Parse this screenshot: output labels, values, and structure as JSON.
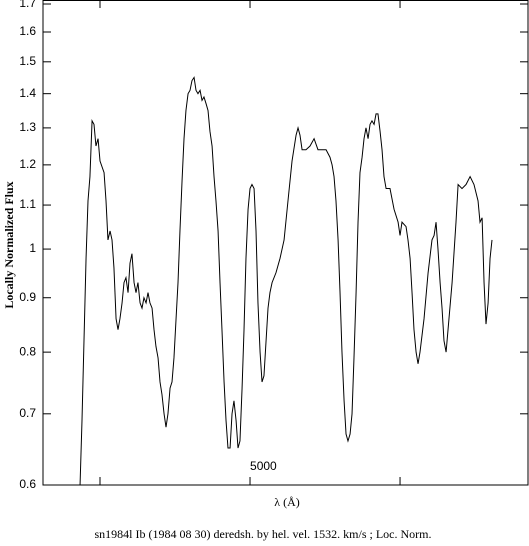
{
  "chart_data": {
    "type": "line",
    "title": "sn1984l Ib (1984 08 30) deredsh. by hel. vel.  1532. km/s ;  Loc. Norm.",
    "x_label": "λ (Å)",
    "y_label": "Locally Normalized Flux",
    "log_y": true,
    "color": "#000000",
    "xlim": [
      3620,
      6853
    ],
    "xticks": [
      {
        "value": 4000,
        "label": null
      },
      5000,
      {
        "value": 6000,
        "label": null
      }
    ],
    "ylim": [
      0.6,
      1.7
    ],
    "yticks": [
      0.6,
      0.7,
      0.8,
      0.9,
      1,
      1.1,
      1.2,
      1.3,
      1.4,
      1.5,
      1.6,
      1.7
    ],
    "x": [
      3867,
      3880,
      3907,
      3920,
      3933,
      3947,
      3960,
      3973,
      3987,
      4000,
      4027,
      4040,
      4053,
      4067,
      4080,
      4093,
      4107,
      4120,
      4133,
      4147,
      4160,
      4173,
      4187,
      4200,
      4213,
      4227,
      4240,
      4253,
      4267,
      4280,
      4293,
      4307,
      4320,
      4333,
      4347,
      4360,
      4373,
      4387,
      4400,
      4413,
      4427,
      4440,
      4453,
      4467,
      4480,
      4493,
      4507,
      4520,
      4533,
      4547,
      4560,
      4573,
      4587,
      4600,
      4613,
      4627,
      4640,
      4653,
      4667,
      4680,
      4693,
      4707,
      4720,
      4733,
      4747,
      4760,
      4773,
      4787,
      4800,
      4813,
      4827,
      4840,
      4853,
      4867,
      4880,
      4893,
      4907,
      4920,
      4933,
      4947,
      4960,
      4973,
      4987,
      5000,
      5013,
      5027,
      5040,
      5053,
      5067,
      5080,
      5093,
      5107,
      5120,
      5133,
      5147,
      5173,
      5200,
      5227,
      5253,
      5280,
      5307,
      5320,
      5333,
      5347,
      5373,
      5400,
      5427,
      5453,
      5480,
      5507,
      5533,
      5547,
      5560,
      5573,
      5587,
      5600,
      5613,
      5627,
      5640,
      5653,
      5667,
      5680,
      5693,
      5707,
      5720,
      5733,
      5747,
      5760,
      5773,
      5787,
      5800,
      5813,
      5827,
      5840,
      5853,
      5867,
      5880,
      5893,
      5907,
      5933,
      5960,
      5987,
      6000,
      6013,
      6040,
      6053,
      6067,
      6080,
      6093,
      6107,
      6120,
      6133,
      6160,
      6187,
      6213,
      6227,
      6240,
      6253,
      6267,
      6280,
      6293,
      6307,
      6320,
      6347,
      6373,
      6387,
      6413,
      6440,
      6467,
      6493,
      6520,
      6533,
      6547,
      6560,
      6573,
      6587,
      6600,
      6613
    ],
    "values": [
      0.6,
      0.69,
      0.98,
      1.11,
      1.17,
      1.32,
      1.31,
      1.25,
      1.27,
      1.21,
      1.18,
      1.11,
      1.02,
      1.04,
      1.02,
      0.96,
      0.86,
      0.84,
      0.86,
      0.89,
      0.93,
      0.94,
      0.91,
      0.97,
      0.99,
      0.93,
      0.91,
      0.93,
      0.89,
      0.88,
      0.9,
      0.89,
      0.91,
      0.89,
      0.88,
      0.84,
      0.81,
      0.79,
      0.75,
      0.73,
      0.7,
      0.68,
      0.7,
      0.74,
      0.75,
      0.79,
      0.86,
      0.93,
      1.04,
      1.16,
      1.27,
      1.35,
      1.4,
      1.41,
      1.44,
      1.45,
      1.41,
      1.4,
      1.41,
      1.38,
      1.39,
      1.37,
      1.35,
      1.29,
      1.25,
      1.17,
      1.11,
      1.04,
      0.93,
      0.84,
      0.75,
      0.69,
      0.65,
      0.65,
      0.7,
      0.72,
      0.69,
      0.65,
      0.66,
      0.74,
      0.84,
      0.98,
      1.09,
      1.14,
      1.15,
      1.14,
      1.04,
      0.89,
      0.8,
      0.75,
      0.76,
      0.82,
      0.88,
      0.91,
      0.93,
      0.95,
      0.98,
      1.02,
      1.11,
      1.21,
      1.28,
      1.3,
      1.28,
      1.24,
      1.24,
      1.25,
      1.27,
      1.24,
      1.24,
      1.24,
      1.22,
      1.2,
      1.17,
      1.11,
      1.02,
      0.91,
      0.8,
      0.72,
      0.67,
      0.66,
      0.67,
      0.7,
      0.79,
      0.91,
      1.06,
      1.18,
      1.22,
      1.27,
      1.3,
      1.27,
      1.31,
      1.32,
      1.31,
      1.34,
      1.34,
      1.29,
      1.24,
      1.17,
      1.14,
      1.14,
      1.09,
      1.06,
      1.03,
      1.06,
      1.05,
      1.02,
      0.98,
      0.91,
      0.84,
      0.8,
      0.78,
      0.8,
      0.86,
      0.95,
      1.02,
      1.03,
      1.06,
      1.0,
      0.93,
      0.88,
      0.82,
      0.8,
      0.84,
      0.93,
      1.06,
      1.15,
      1.14,
      1.15,
      1.17,
      1.15,
      1.11,
      1.06,
      1.07,
      0.93,
      0.85,
      0.89,
      0.98,
      1.02
    ]
  }
}
